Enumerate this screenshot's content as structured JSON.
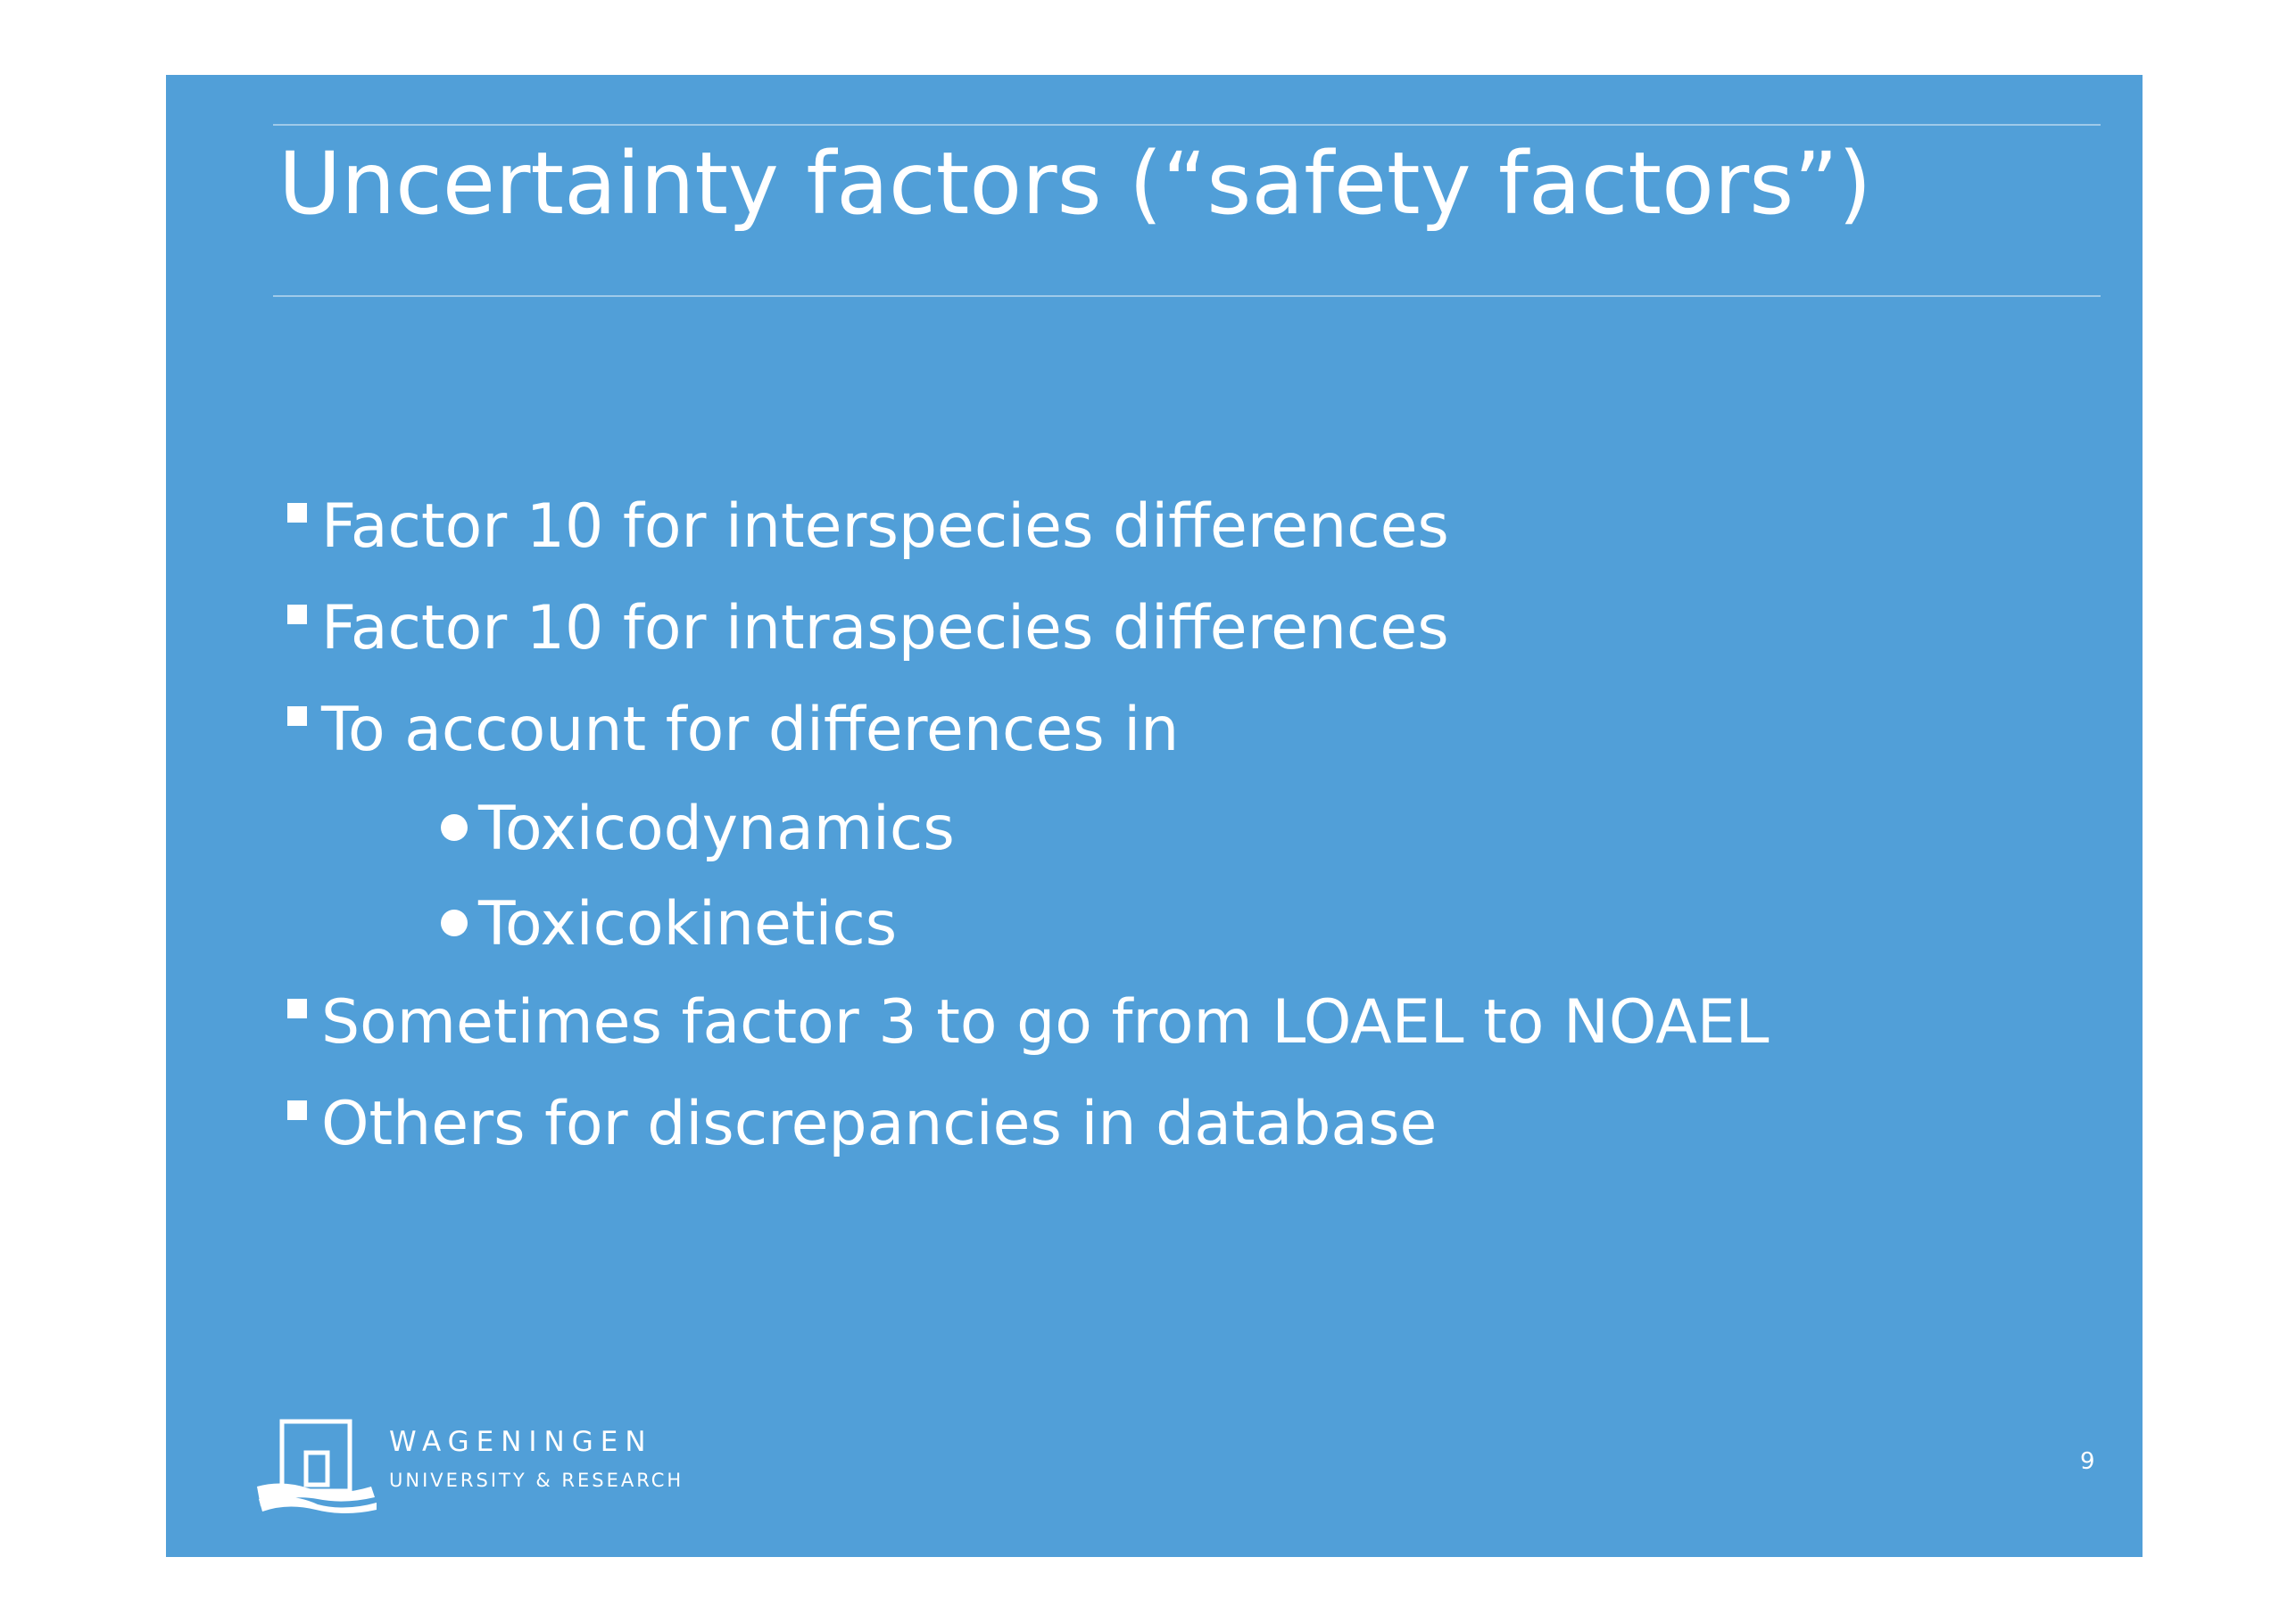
{
  "slide": {
    "title": "Uncertainty factors (“safety factors”)",
    "bullets": [
      "Factor 10 for interspecies differences",
      "Factor 10 for intraspecies differences",
      "To account for differences in"
    ],
    "sub_bullets": [
      "Toxicodynamics",
      "Toxicokinetics"
    ],
    "bullets_after": [
      "Sometimes factor 3 to go from LOAEL to NOAEL",
      "Others for discrepancies in database"
    ],
    "logo": {
      "name": "WAGENINGEN",
      "subtitle": "UNIVERSITY & RESEARCH"
    },
    "page_number": "9",
    "background_color": "#519fd8",
    "text_color": "#ffffff"
  }
}
